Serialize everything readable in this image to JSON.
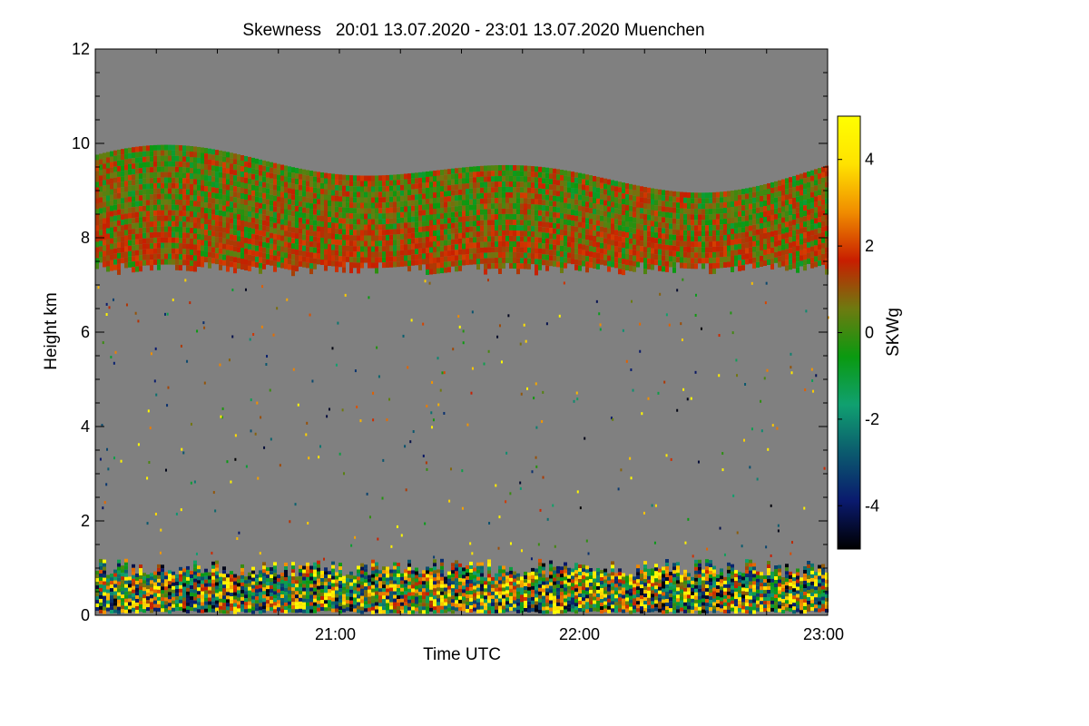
{
  "chart_data": {
    "type": "heatmap",
    "title": "Skewness   20:01 13.07.2020 - 23:01 13.07.2020 Muenchen",
    "xlabel": "Time UTC",
    "ylabel": "Height km",
    "colorbar_label": "SKWg",
    "xlim": [
      "20:01",
      "23:01"
    ],
    "ylim": [
      0,
      12
    ],
    "colorbar_range": [
      -5,
      5
    ],
    "x_ticks": [
      {
        "label": "21:00",
        "value": 59
      },
      {
        "label": "22:00",
        "value": 119
      },
      {
        "label": "23:00",
        "value": 179
      }
    ],
    "y_ticks": [
      {
        "label": "0",
        "value": 0
      },
      {
        "label": "2",
        "value": 2
      },
      {
        "label": "4",
        "value": 4
      },
      {
        "label": "6",
        "value": 6
      },
      {
        "label": "8",
        "value": 8
      },
      {
        "label": "10",
        "value": 10
      },
      {
        "label": "12",
        "value": 12
      }
    ],
    "colorbar_ticks": [
      {
        "label": "4",
        "value": 4
      },
      {
        "label": "2",
        "value": 2
      },
      {
        "label": "0",
        "value": 0
      },
      {
        "label": "-2",
        "value": -2
      },
      {
        "label": "-4",
        "value": -4
      }
    ],
    "background_color": "#808080",
    "colormap": [
      "#000000",
      "#0a1a6e",
      "#0b5a6e",
      "#10a070",
      "#0a9a10",
      "#6e7a10",
      "#c81e00",
      "#f08c00",
      "#ffe200",
      "#ffff00"
    ],
    "layers": [
      {
        "name": "upper-cloud",
        "base_km": 7.4,
        "top_km_range": [
          8.9,
          10.0
        ],
        "dominant_skewness": [
          -1,
          2
        ]
      },
      {
        "name": "boundary-layer",
        "base_km": 0.1,
        "top_km_range": [
          0.8,
          1.2
        ],
        "dominant_skewness": [
          -5,
          5
        ]
      }
    ]
  }
}
